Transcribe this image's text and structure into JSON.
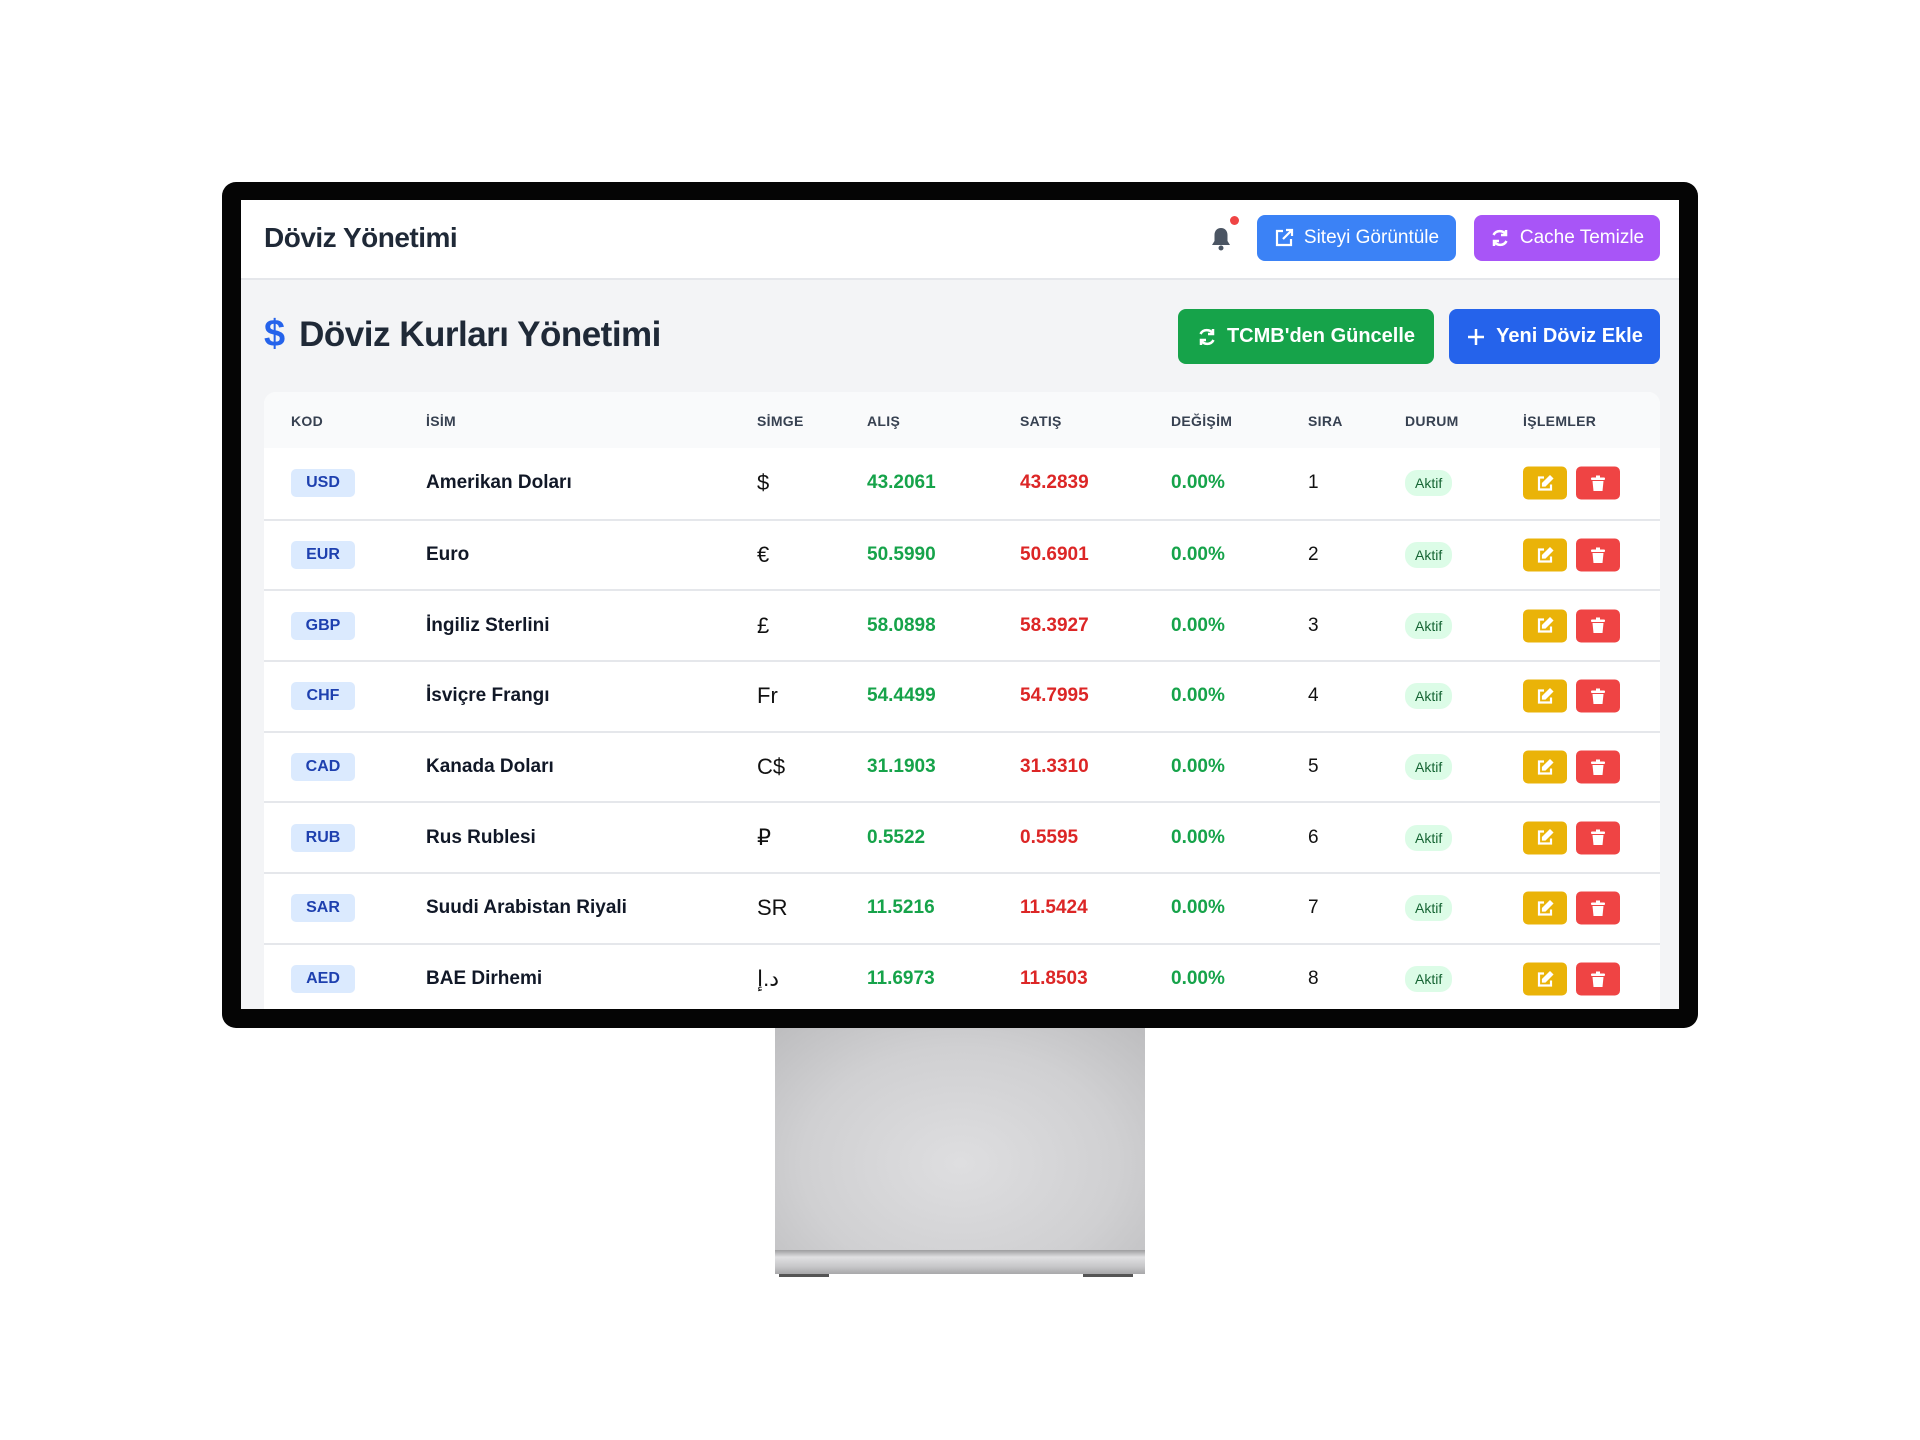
{
  "header": {
    "title": "Döviz Yönetimi",
    "notification_icon": "bell-icon",
    "has_unread_notification": true,
    "view_site_label": "Siteyi Görüntüle",
    "clear_cache_label": "Cache Temizle"
  },
  "page": {
    "title_icon": "dollar-icon",
    "title": "Döviz Kurları Yönetimi",
    "tcmb_update_label": "TCMB'den Güncelle",
    "add_currency_label": "Yeni Döviz Ekle"
  },
  "colors": {
    "view_site": "#3b82f6",
    "clear_cache": "#a855f7",
    "tcmb": "#16a34a",
    "add": "#2563eb",
    "buy": "#16a34a",
    "sell": "#dc2626",
    "edit": "#eab308",
    "delete": "#ef4444"
  },
  "table": {
    "columns": [
      "KOD",
      "İSİM",
      "SİMGE",
      "ALIŞ",
      "SATIŞ",
      "DEĞİŞİM",
      "SIRA",
      "DURUM",
      "İŞLEMLER"
    ],
    "rows": [
      {
        "code": "USD",
        "name": "Amerikan Doları",
        "symbol": "$",
        "buy": "43.2061",
        "sell": "43.2839",
        "change": "0.00%",
        "order": "1",
        "status": "Aktif"
      },
      {
        "code": "EUR",
        "name": "Euro",
        "symbol": "€",
        "buy": "50.5990",
        "sell": "50.6901",
        "change": "0.00%",
        "order": "2",
        "status": "Aktif"
      },
      {
        "code": "GBP",
        "name": "İngiliz Sterlini",
        "symbol": "£",
        "buy": "58.0898",
        "sell": "58.3927",
        "change": "0.00%",
        "order": "3",
        "status": "Aktif"
      },
      {
        "code": "CHF",
        "name": "İsviçre Frangı",
        "symbol": "Fr",
        "buy": "54.4499",
        "sell": "54.7995",
        "change": "0.00%",
        "order": "4",
        "status": "Aktif"
      },
      {
        "code": "CAD",
        "name": "Kanada Doları",
        "symbol": "C$",
        "buy": "31.1903",
        "sell": "31.3310",
        "change": "0.00%",
        "order": "5",
        "status": "Aktif"
      },
      {
        "code": "RUB",
        "name": "Rus Rublesi",
        "symbol": "₽",
        "buy": "0.5522",
        "sell": "0.5595",
        "change": "0.00%",
        "order": "6",
        "status": "Aktif"
      },
      {
        "code": "SAR",
        "name": "Suudi Arabistan Riyali",
        "symbol": "SR",
        "buy": "11.5216",
        "sell": "11.5424",
        "change": "0.00%",
        "order": "7",
        "status": "Aktif"
      },
      {
        "code": "AED",
        "name": "BAE Dirhemi",
        "symbol": "د.إ",
        "buy": "11.6973",
        "sell": "11.8503",
        "change": "0.00%",
        "order": "8",
        "status": "Aktif"
      }
    ]
  }
}
